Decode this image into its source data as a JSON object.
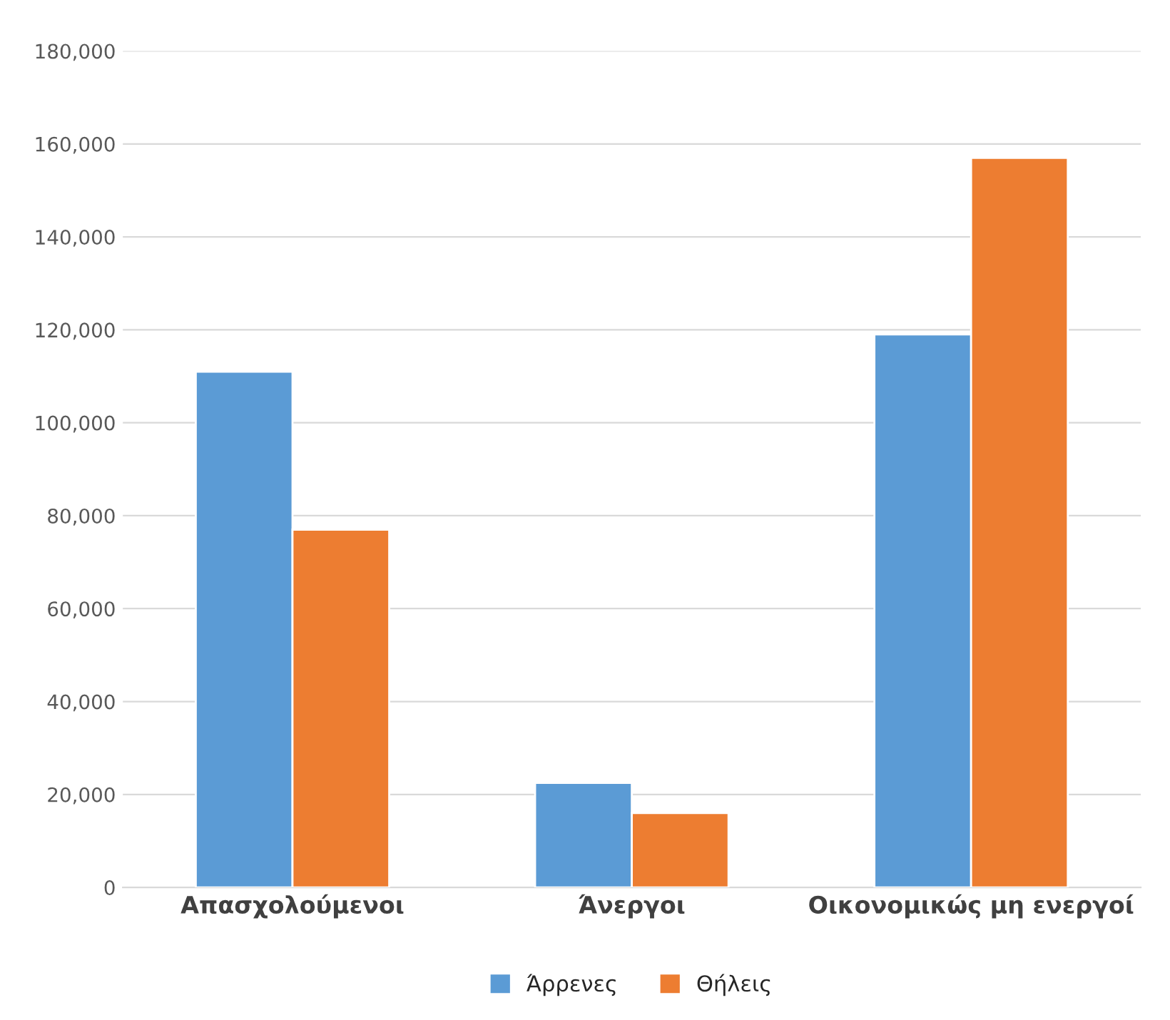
{
  "chart_data": {
    "type": "bar",
    "categories": [
      "Απασχολούμενοι",
      "Άνεργοι",
      "Οικονομικώς μη ενεργοί"
    ],
    "series": [
      {
        "name": "Άρρενες",
        "color": "#5b9bd5",
        "values": [
          111000,
          22500,
          119000
        ]
      },
      {
        "name": "Θήλεις",
        "color": "#ed7d31",
        "values": [
          77000,
          16000,
          157000
        ]
      }
    ],
    "ylim": [
      0,
      180000
    ],
    "yticks": [
      {
        "value": 0,
        "label": "0"
      },
      {
        "value": 20000,
        "label": "20,000"
      },
      {
        "value": 40000,
        "label": "40,000"
      },
      {
        "value": 60000,
        "label": "60,000"
      },
      {
        "value": 80000,
        "label": "80,000"
      },
      {
        "value": 100000,
        "label": "100,000"
      },
      {
        "value": 120000,
        "label": "120,000"
      },
      {
        "value": 140000,
        "label": "140,000"
      },
      {
        "value": 160000,
        "label": "160,000"
      },
      {
        "value": 180000,
        "label": "180,000"
      }
    ],
    "grid": "y",
    "legend": "bottom"
  }
}
